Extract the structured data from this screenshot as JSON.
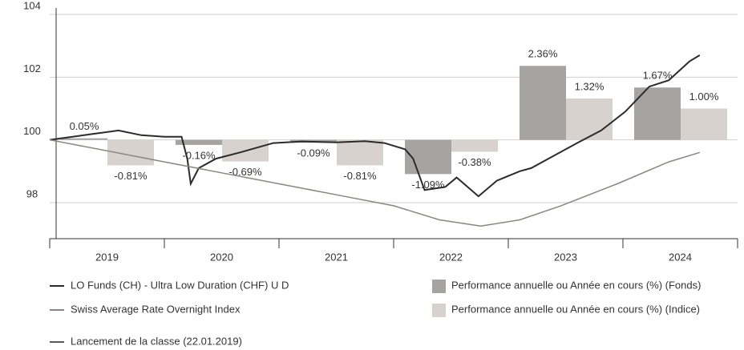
{
  "chart_data": {
    "type": "bar_line",
    "categories": [
      "2019",
      "2020",
      "2021",
      "2022",
      "2023",
      "2024"
    ],
    "xlim": [
      2019,
      2025
    ],
    "ylim": [
      96.85,
      104
    ],
    "yticks": [
      98,
      100,
      102,
      104
    ],
    "y2lim": [
      -3.15,
      4
    ],
    "grid": true,
    "bar_series": [
      {
        "name": "Performance annuelle ou Année en cours (%) (Fonds)",
        "color": "#a6a3a3",
        "axis": "y2",
        "values": [
          0.05,
          -0.16,
          -0.09,
          -1.09,
          2.36,
          1.67
        ],
        "value_labels": [
          "0.05%",
          "-0.16%",
          "-0.09%",
          "-1.09%",
          "2.36%",
          "1.67%"
        ]
      },
      {
        "name": "Performance annuelle ou Année en cours (%) (Indice)",
        "color": "#d7d2cd",
        "axis": "y2",
        "values": [
          -0.81,
          -0.69,
          -0.81,
          -0.38,
          1.32,
          1.0
        ],
        "value_labels": [
          "-0.81%",
          "-0.69%",
          "-0.81%",
          "-0.38%",
          "1.32%",
          "1.00%"
        ]
      }
    ],
    "line_series": [
      {
        "name": "LO Funds (CH) - Ultra Low Duration (CHF) U D",
        "color": "#2b2b2b",
        "width": 2,
        "x": [
          2019.0,
          2019.2,
          2019.4,
          2019.6,
          2019.8,
          2020.0,
          2020.15,
          2020.2,
          2020.23,
          2020.3,
          2020.45,
          2020.66,
          2020.95,
          2021.2,
          2021.5,
          2021.75,
          2021.92,
          2022.1,
          2022.17,
          2022.27,
          2022.45,
          2022.55,
          2022.74,
          2022.9,
          2023.1,
          2023.2,
          2023.4,
          2023.6,
          2023.81,
          2024.02,
          2024.23,
          2024.4,
          2024.58,
          2024.67
        ],
        "values": [
          100.0,
          100.1,
          100.2,
          100.3,
          100.15,
          100.1,
          100.1,
          99.4,
          98.6,
          99.1,
          99.4,
          99.6,
          99.9,
          99.95,
          99.92,
          99.96,
          99.9,
          99.7,
          99.4,
          98.4,
          98.5,
          98.8,
          98.2,
          98.7,
          99.0,
          99.1,
          99.5,
          99.9,
          100.3,
          100.9,
          101.7,
          101.9,
          102.5,
          102.7
        ]
      },
      {
        "name": "Swiss Average Rate Overnight Index",
        "color": "#8c8480",
        "width": 1.5,
        "x": [
          2019.0,
          2019.5,
          2020.0,
          2020.5,
          2021.0,
          2021.5,
          2022.0,
          2022.4,
          2022.76,
          2023.1,
          2023.46,
          2023.95,
          2024.4,
          2024.67
        ],
        "values": [
          100.0,
          99.65,
          99.3,
          98.95,
          98.6,
          98.25,
          97.9,
          97.45,
          97.25,
          97.45,
          97.9,
          98.6,
          99.3,
          99.6
        ]
      }
    ],
    "launch_legend": "Lancement de la classe (22.01.2019)"
  }
}
